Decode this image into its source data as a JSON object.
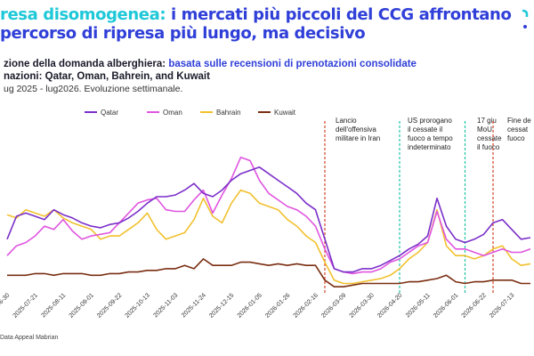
{
  "header": {
    "title_accent": "resa disomogenea:",
    "title_rest_line1": " i mercati più piccoli del CCG affrontano",
    "title_line2": "percorso di ripresa più lungo, ma decisivo",
    "subtitle_prefix": "zione della domanda alberghiera: ",
    "subtitle_highlight": "basata sulle recensioni di prenotazioni consolidate",
    "destinations": "nazioni: Qatar, Oman, Bahrein, and Kuwait",
    "period": "ug 2025 - lug2026. Evoluzione settimanale.",
    "source": "Data Appeal Mabrian"
  },
  "colors": {
    "title": "#2f3fd8",
    "title_accent": "#1ec8d8",
    "Qatar": "#7b2fc9",
    "Oman": "#e055e0",
    "Bahrain": "#f2c12e",
    "Kuwait": "#7a2e12",
    "event_red": "#d2452b",
    "event_green": "#1fc4a6"
  },
  "chart_data": {
    "type": "line",
    "x": [
      "2025-06-30",
      "2025-07-07",
      "2025-07-14",
      "2025-07-21",
      "2025-07-28",
      "2025-08-04",
      "2025-08-11",
      "2025-08-18",
      "2025-08-25",
      "2025-09-01",
      "2025-09-08",
      "2025-09-15",
      "2025-09-22",
      "2025-09-29",
      "2025-10-06",
      "2025-10-13",
      "2025-10-20",
      "2025-10-27",
      "2025-11-03",
      "2025-11-10",
      "2025-11-17",
      "2025-11-24",
      "2025-12-01",
      "2025-12-08",
      "2025-12-15",
      "2025-12-22",
      "2025-12-29",
      "2026-01-05",
      "2026-01-12",
      "2026-01-19",
      "2026-01-26",
      "2026-02-02",
      "2026-02-09",
      "2026-02-16",
      "2026-02-23",
      "2026-03-02",
      "2026-03-09",
      "2026-03-16",
      "2026-03-23",
      "2026-03-30",
      "2026-04-06",
      "2026-04-13",
      "2026-04-20",
      "2026-04-27",
      "2026-05-04",
      "2026-05-11",
      "2026-05-18",
      "2026-05-25",
      "2026-06-01",
      "2026-06-08",
      "2026-06-15",
      "2026-06-22",
      "2026-06-29",
      "2026-07-06",
      "2026-07-13",
      "2026-07-20",
      "2026-07-27"
    ],
    "x_tick_labels": [
      "2025-06-30",
      "2025-07-21",
      "2025-08-11",
      "2025-09-01",
      "2025-09-22",
      "2025-10-13",
      "2025-11-03",
      "2025-11-24",
      "2025-12-15",
      "2026-01-05",
      "2026-01-26",
      "2026-02-16",
      "2026-03-09",
      "2026-03-30",
      "2026-04-20",
      "2026-05-11",
      "2026-06-01",
      "2026-06-22",
      "2026-07-13"
    ],
    "y_range": [
      0,
      100
    ],
    "grid": false,
    "legend_position": "top",
    "series": [
      {
        "name": "Qatar",
        "values": [
          30,
          44,
          46,
          44,
          42,
          48,
          45,
          43,
          40,
          38,
          37,
          39,
          40,
          43,
          47,
          52,
          56,
          56,
          57,
          60,
          64,
          58,
          56,
          60,
          66,
          70,
          72,
          74,
          70,
          66,
          62,
          58,
          52,
          48,
          30,
          12,
          10,
          10,
          12,
          12,
          14,
          17,
          20,
          24,
          27,
          32,
          55,
          38,
          30,
          28,
          30,
          33,
          40,
          42,
          36,
          30,
          31
        ]
      },
      {
        "name": "Oman",
        "values": [
          20,
          26,
          28,
          32,
          38,
          36,
          42,
          35,
          30,
          32,
          33,
          34,
          40,
          46,
          52,
          54,
          55,
          48,
          47,
          47,
          54,
          60,
          46,
          57,
          67,
          80,
          78,
          66,
          58,
          54,
          50,
          48,
          44,
          38,
          24,
          12,
          10,
          9,
          10,
          10,
          12,
          16,
          18,
          22,
          26,
          28,
          47,
          30,
          24,
          24,
          22,
          20,
          22,
          24,
          22,
          22,
          24
        ]
      },
      {
        "name": "Bahrain",
        "values": [
          45,
          43,
          48,
          46,
          44,
          48,
          43,
          40,
          38,
          36,
          30,
          32,
          32,
          36,
          40,
          46,
          36,
          30,
          32,
          34,
          42,
          55,
          44,
          40,
          52,
          60,
          58,
          52,
          50,
          48,
          42,
          38,
          32,
          28,
          16,
          5,
          3,
          3,
          4,
          5,
          6,
          8,
          12,
          18,
          22,
          28,
          48,
          26,
          20,
          20,
          18,
          20,
          24,
          26,
          18,
          14,
          15
        ]
      },
      {
        "name": "Kuwait",
        "values": [
          8,
          8,
          8,
          9,
          9,
          8,
          9,
          9,
          9,
          8,
          8,
          9,
          9,
          10,
          10,
          11,
          11,
          12,
          12,
          14,
          12,
          18,
          14,
          14,
          14,
          16,
          16,
          15,
          14,
          15,
          14,
          15,
          14,
          14,
          5,
          1,
          1,
          2,
          3,
          3,
          3,
          3,
          3,
          4,
          4,
          5,
          6,
          8,
          4,
          3,
          4,
          4,
          5,
          5,
          5,
          3,
          3
        ]
      }
    ],
    "annotations": [
      {
        "date": "2026-02-23",
        "text": [
          "Lancio",
          "dell'offensiva",
          "militare in Iran"
        ],
        "color": "red"
      },
      {
        "date": "2026-04-20",
        "text": [
          "US prorogano",
          "il cessate il",
          "fuoco a tempo",
          "indeterminato"
        ],
        "color": "green"
      },
      {
        "date": "2026-06-08",
        "text": [
          "17 giu",
          "MoU",
          "cessate",
          "il fuoco"
        ],
        "color": "green"
      },
      {
        "date": "2026-06-29",
        "text": [
          "Fine de",
          "cessat",
          "fuoco"
        ],
        "color": "red"
      }
    ]
  }
}
